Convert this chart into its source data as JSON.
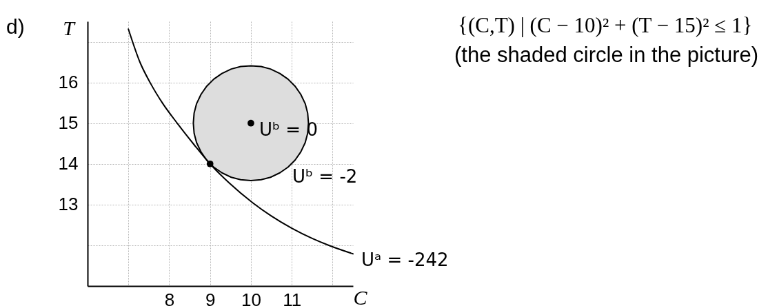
{
  "chart_data": {
    "type": "line",
    "title": "d)",
    "xlabel": "C",
    "ylabel": "T",
    "xlim": [
      6,
      12.5
    ],
    "ylim": [
      11,
      17.5
    ],
    "xticks": [
      {
        "value": 7,
        "label": null
      },
      8,
      9,
      10,
      11,
      {
        "value": 12,
        "label": null
      }
    ],
    "yticks": [
      {
        "value": 12,
        "label": null
      },
      13,
      14,
      15,
      16,
      {
        "value": 17,
        "label": null
      }
    ],
    "grid": true,
    "series": [
      {
        "color": "#dddddd",
        "x": [
          8.59,
          8.61,
          8.67,
          8.78,
          8.92,
          9.09,
          9.29,
          9.52,
          9.75,
          10,
          10.25,
          10.48,
          10.71,
          10.91,
          11.08,
          11.22,
          11.33,
          11.39,
          11.41
        ],
        "values": [
          null,
          null,
          null,
          null,
          null,
          null,
          null,
          null,
          null,
          null,
          null,
          null,
          null,
          null,
          null,
          null,
          null,
          null,
          null
        ],
        "upper": [
          15,
          15.25,
          15.48,
          15.71,
          15.91,
          16.08,
          16.22,
          16.33,
          16.39,
          16.41,
          16.39,
          16.33,
          16.22,
          16.08,
          15.91,
          15.71,
          15.48,
          15.25,
          15
        ],
        "lower": [
          15,
          14.75,
          14.52,
          14.29,
          14.09,
          13.92,
          13.78,
          13.67,
          13.61,
          13.59,
          13.61,
          13.67,
          13.78,
          13.92,
          14.09,
          14.29,
          14.52,
          14.75,
          15
        ]
      },
      {
        "color": "#000000",
        "x": [
          7.0,
          7.29,
          7.53,
          7.83,
          8.21,
          8.61,
          9.0,
          9.47,
          10.05,
          10.5,
          11.0,
          11.5,
          11.93,
          12.5
        ],
        "values": [
          17.31,
          16.48,
          16.0,
          15.5,
          14.98,
          14.47,
          14.0,
          13.53,
          13.04,
          12.72,
          12.42,
          12.17,
          11.99,
          11.79
        ]
      },
      {
        "type": "scatter",
        "color": "#000000",
        "marker": "circle",
        "x": [
          10,
          9
        ],
        "values": [
          15,
          14
        ]
      }
    ],
    "annotations": [
      {
        "text": "Uᵇ = 0",
        "x": 10,
        "y": 15
      },
      {
        "text": "Uᵇ = -2",
        "x": 10.81,
        "y": 13.84
      },
      {
        "text": "Uᵃ = -242",
        "x": 12.5,
        "y": 11.79
      },
      "{(C,T) | (C − 10)² + (T − 15)² ≤ 1}",
      "(the shaded circle in the picture)"
    ]
  }
}
